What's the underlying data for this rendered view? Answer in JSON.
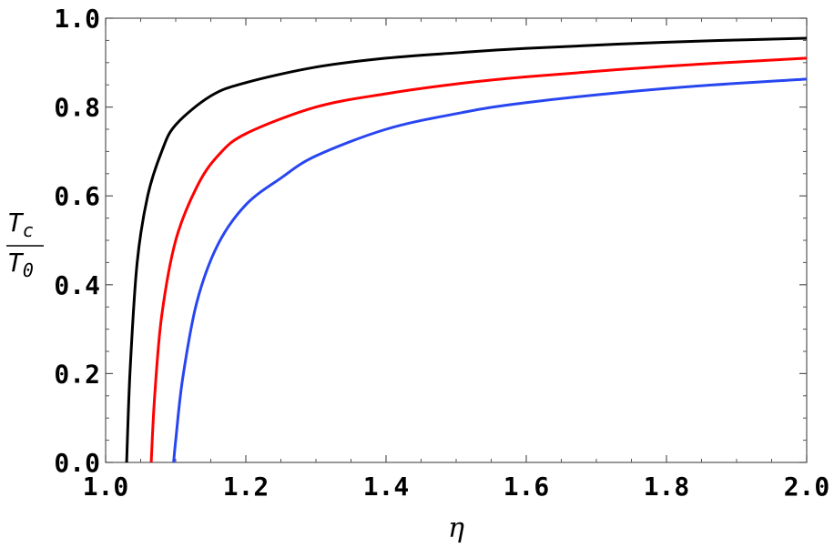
{
  "chart_data": {
    "type": "line",
    "title": "",
    "xlabel": "η",
    "ylabel": {
      "numerator": "T",
      "numerator_sub": "c",
      "denominator": "T",
      "denominator_sub": "0"
    },
    "xlim": [
      1.0,
      2.0
    ],
    "ylim": [
      0.0,
      1.0
    ],
    "x_ticks": [
      1.0,
      1.2,
      1.4,
      1.6,
      1.8,
      2.0
    ],
    "x_tick_labels": [
      "1.0",
      "1.2",
      "1.4",
      "1.6",
      "1.8",
      "2.0"
    ],
    "y_ticks": [
      0.0,
      0.2,
      0.4,
      0.6,
      0.8,
      1.0
    ],
    "y_tick_labels": [
      "0.0",
      "0.2",
      "0.4",
      "0.6",
      "0.8",
      "1.0"
    ],
    "grid": false,
    "legend": "none",
    "series": [
      {
        "color": "#000000",
        "x": [
          1.03,
          1.035,
          1.045,
          1.06,
          1.08,
          1.1,
          1.15,
          1.2,
          1.3,
          1.4,
          1.5,
          1.6,
          1.8,
          2.0
        ],
        "y": [
          0.0,
          0.21,
          0.45,
          0.6,
          0.7,
          0.76,
          0.825,
          0.855,
          0.89,
          0.91,
          0.922,
          0.932,
          0.946,
          0.955
        ]
      },
      {
        "color": "#ff0000",
        "x": [
          1.065,
          1.07,
          1.08,
          1.1,
          1.13,
          1.16,
          1.2,
          1.3,
          1.4,
          1.5,
          1.6,
          1.8,
          2.0
        ],
        "y": [
          0.0,
          0.15,
          0.33,
          0.5,
          0.62,
          0.69,
          0.74,
          0.8,
          0.83,
          0.852,
          0.868,
          0.892,
          0.91
        ]
      },
      {
        "color": "#2846f0",
        "x": [
          1.097,
          1.1,
          1.11,
          1.13,
          1.16,
          1.2,
          1.25,
          1.3,
          1.4,
          1.5,
          1.6,
          1.8,
          2.0
        ],
        "y": [
          0.0,
          0.05,
          0.19,
          0.36,
          0.49,
          0.58,
          0.64,
          0.69,
          0.75,
          0.785,
          0.81,
          0.842,
          0.863
        ]
      }
    ]
  }
}
